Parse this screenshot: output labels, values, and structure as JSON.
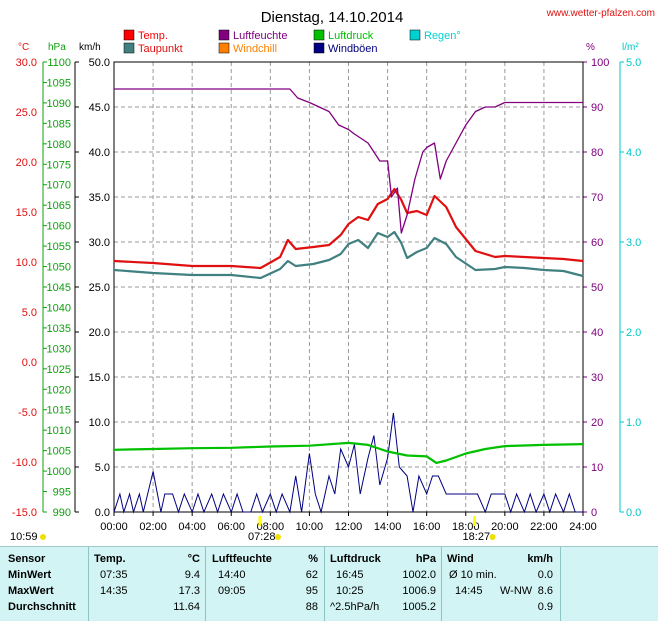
{
  "header": {
    "title": "Dienstag, 14.10.2014",
    "site": "www.wetter-pfalzen.com"
  },
  "chart_data": {
    "type": "line",
    "title": "Dienstag, 14.10.2014",
    "xlim": [
      0,
      24
    ],
    "x_ticks": [
      "00:00",
      "02:00",
      "04:00",
      "06:00",
      "08:00",
      "10:00",
      "12:00",
      "14:00",
      "16:00",
      "18:00",
      "20:00",
      "22:00",
      "24:00"
    ],
    "axes": {
      "temp": {
        "unit": "°C",
        "min": -15,
        "max": 30,
        "ticks": [
          "30.0",
          "25.0",
          "20.0",
          "15.0",
          "10.0",
          "5.0",
          "0.0",
          "-5.0",
          "-10.0",
          "-15.0"
        ],
        "color": "#e01010"
      },
      "pressure": {
        "unit": "hPa",
        "min": 990,
        "max": 1100,
        "ticks": [
          "1100",
          "1095",
          "1090",
          "1085",
          "1080",
          "1075",
          "1070",
          "1065",
          "1060",
          "1055",
          "1050",
          "1045",
          "1040",
          "1035",
          "1030",
          "1025",
          "1020",
          "1015",
          "1010",
          "1005",
          "1000",
          "995",
          "990"
        ],
        "color": "#10a010"
      },
      "wind": {
        "unit": "km/h",
        "min": 0,
        "max": 50,
        "ticks": [
          "50.0",
          "45.0",
          "40.0",
          "35.0",
          "30.0",
          "25.0",
          "20.0",
          "15.0",
          "10.0",
          "5.0",
          "0.0"
        ],
        "color": "#000000"
      },
      "humidity": {
        "unit": "%",
        "min": 0,
        "max": 100,
        "ticks": [
          "100",
          "90",
          "80",
          "70",
          "60",
          "50",
          "40",
          "30",
          "20",
          "10",
          "0"
        ],
        "color": "#800080"
      },
      "rain": {
        "unit": "l/m²",
        "min": 0,
        "max": 5,
        "ticks": [
          "5.0",
          "4.0",
          "3.0",
          "2.0",
          "1.0",
          "0.0"
        ],
        "color": "#00c8c8"
      }
    },
    "legend": [
      {
        "name": "Temp.",
        "color": "#ff0000"
      },
      {
        "name": "Luftfeuchte",
        "color": "#800080"
      },
      {
        "name": "Luftdruck",
        "color": "#00c000"
      },
      {
        "name": "Regen°",
        "color": "#00d0d0"
      },
      {
        "name": "Taupunkt",
        "color": "#408080"
      },
      {
        "name": "Windchill",
        "color": "#ff8000"
      },
      {
        "name": "Windböen",
        "color": "#000080"
      }
    ],
    "series": [
      {
        "name": "Temp.",
        "axis": "temp",
        "color": "#e01010",
        "x": [
          0,
          2,
          4,
          6,
          7.5,
          8.5,
          8.9,
          9.3,
          10.2,
          11,
          11.6,
          12,
          12.5,
          13,
          13.5,
          14,
          14.35,
          14.7,
          15,
          15.5,
          16,
          16.4,
          17,
          17.5,
          18.5,
          19.5,
          20,
          21,
          22,
          23,
          24
        ],
        "y": [
          10.1,
          9.9,
          9.6,
          9.6,
          9.4,
          10.5,
          12.2,
          11.3,
          11.5,
          11.7,
          12.7,
          13.8,
          14.5,
          14.2,
          15.8,
          16.3,
          17.3,
          16.2,
          14.9,
          15.1,
          14.7,
          16.6,
          15.5,
          13.5,
          11.1,
          10.5,
          10.6,
          10.5,
          10.4,
          10.3,
          10.1
        ]
      },
      {
        "name": "Taupunkt",
        "axis": "temp",
        "color": "#408080",
        "x": [
          0,
          2,
          4,
          6,
          7.5,
          8.5,
          8.9,
          9.3,
          10.2,
          11,
          11.6,
          12,
          12.5,
          13,
          13.5,
          14,
          14.35,
          14.7,
          15,
          15.5,
          16,
          16.4,
          17,
          17.5,
          18.5,
          19.5,
          20,
          21,
          22,
          23,
          24
        ],
        "y": [
          9.2,
          8.9,
          8.7,
          8.7,
          8.4,
          9.3,
          10.1,
          9.6,
          9.8,
          10.2,
          10.8,
          11.8,
          12.2,
          11.4,
          12.9,
          12.5,
          13.0,
          11.9,
          10.4,
          11.0,
          11.4,
          12.4,
          11.8,
          10.5,
          9.2,
          9.3,
          9.5,
          9.4,
          9.2,
          9.1,
          8.6
        ]
      },
      {
        "name": "Luftfeuchte",
        "axis": "humidity",
        "color": "#800080",
        "x": [
          0,
          3,
          6,
          9.0,
          9.4,
          10,
          11,
          11.5,
          12,
          12.3,
          13,
          13.6,
          14,
          14.2,
          14.5,
          14.7,
          15,
          15.4,
          15.8,
          16,
          16.4,
          16.7,
          17,
          17.5,
          18,
          18.5,
          19,
          19.5,
          20,
          21,
          22,
          23,
          24
        ],
        "y": [
          94,
          94,
          94,
          94,
          92,
          91,
          89,
          86,
          85,
          84,
          82,
          78,
          78,
          70,
          72,
          62,
          66,
          74,
          80,
          81,
          82,
          74,
          78,
          82,
          86,
          89,
          90,
          90,
          91,
          91,
          91,
          91,
          91
        ]
      },
      {
        "name": "Luftdruck",
        "axis": "pressure",
        "color": "#00c000",
        "x": [
          0,
          2,
          4,
          6,
          8,
          10,
          12,
          13,
          14,
          15,
          16,
          16.5,
          17,
          18,
          19,
          20,
          22,
          24
        ],
        "y": [
          1005.2,
          1005.4,
          1005.6,
          1005.7,
          1006.0,
          1006.2,
          1006.9,
          1006.4,
          1004.8,
          1003.8,
          1003.6,
          1002.0,
          1002.6,
          1004.3,
          1005.4,
          1006.1,
          1006.4,
          1006.6
        ]
      }
    ],
    "windboen_x": [
      0,
      0.3,
      0.5,
      0.8,
      1,
      1.3,
      1.5,
      2,
      2.4,
      2.6,
      3,
      3.3,
      3.6,
      4,
      4.3,
      4.6,
      5,
      5.3,
      5.6,
      6,
      6.3,
      6.6,
      7,
      7.3,
      7.6,
      8,
      8.3,
      8.6,
      9,
      9.3,
      9.6,
      10,
      10.3,
      10.6,
      11,
      11.3,
      11.6,
      12,
      12.3,
      12.6,
      13,
      13.3,
      13.6,
      14,
      14.3,
      14.6,
      15,
      15.3,
      15.6,
      16,
      16.3,
      16.6,
      17,
      17.3,
      17.6,
      18,
      18.3,
      18.6,
      19,
      19.3,
      19.6,
      20,
      20.3,
      20.6,
      21,
      21.3,
      21.6,
      22,
      22.3,
      22.6,
      23,
      23.3,
      23.6,
      24
    ],
    "windboen_y": [
      0,
      2.0,
      0,
      2.0,
      0,
      2.0,
      0,
      4.5,
      0,
      2.0,
      2.0,
      0,
      2.0,
      0,
      2.0,
      0,
      2.0,
      0,
      2.0,
      0,
      2.0,
      0,
      0,
      2.0,
      0,
      2.0,
      0,
      2.0,
      0,
      4.0,
      0,
      6.5,
      2.0,
      0,
      4.0,
      2.0,
      7.0,
      5.0,
      7.5,
      2.0,
      6.0,
      8.5,
      3.0,
      6.0,
      11.0,
      5.0,
      4.0,
      0,
      4.0,
      2.0,
      4.0,
      4.0,
      2.0,
      2.0,
      2.0,
      2.0,
      2.0,
      2.0,
      0,
      2.0,
      2.0,
      2.0,
      0,
      2.0,
      0,
      2.0,
      0,
      2.0,
      0,
      2.0,
      0,
      2.0,
      0,
      0
    ],
    "time_markers": [
      {
        "label": "10:59",
        "x": 0
      },
      {
        "label": "07:28",
        "x": 7.47
      },
      {
        "label": "18:27",
        "x": 18.45
      }
    ]
  },
  "summary": {
    "headers": {
      "sensor": "Sensor",
      "temp": "Temp.",
      "temp_unit": "°C",
      "hum": "Luftfeuchte",
      "hum_unit": "%",
      "press": "Luftdruck",
      "press_unit": "hPa",
      "wind": "Wind",
      "wind_unit": "km/h"
    },
    "rows": [
      {
        "label": "MinWert",
        "temp_time": "07:35",
        "temp_val": "9.4",
        "hum_time": "14:40",
        "hum_val": "62",
        "press_time": "16:45",
        "press_val": "1002.0",
        "wind_time": "Ø 10 min.",
        "wind_dir": "",
        "wind_val": "0.0"
      },
      {
        "label": "MaxWert",
        "temp_time": "14:35",
        "temp_val": "17.3",
        "hum_time": "09:05",
        "hum_val": "95",
        "press_time": "10:25",
        "press_val": "1006.9",
        "wind_time": "14:45",
        "wind_dir": "W-NW",
        "wind_val": "8.6"
      },
      {
        "label": "Durchschnitt",
        "temp_time": "",
        "temp_val": "11.64",
        "hum_time": "",
        "hum_val": "88",
        "press_time": "^2.5hPa/h",
        "press_val": "1005.2",
        "wind_time": "",
        "wind_dir": "",
        "wind_val": "0.9"
      }
    ]
  }
}
